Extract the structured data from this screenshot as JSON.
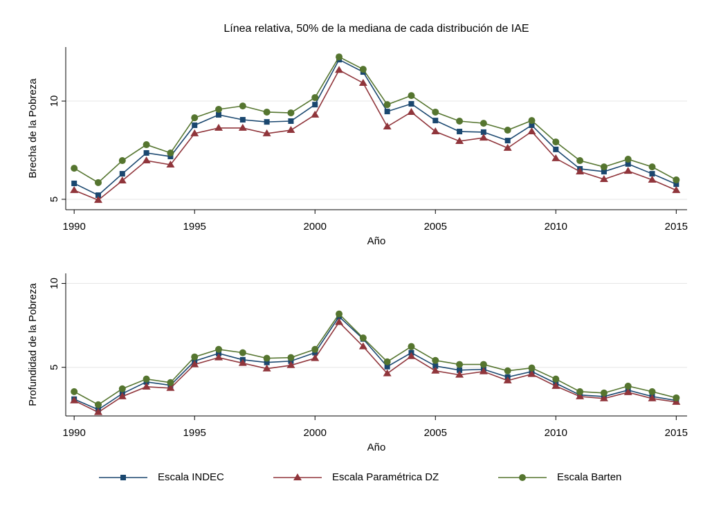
{
  "chart_data": [
    {
      "type": "line",
      "title": "Línea relativa, 50% de la mediana de cada distribución de IAE",
      "y_label": "Brecha de la Pobreza",
      "x_label": "Año",
      "x": [
        1990,
        1991,
        1992,
        1993,
        1994,
        1995,
        1996,
        1997,
        1998,
        1999,
        2000,
        2001,
        2002,
        2003,
        2004,
        2005,
        2006,
        2007,
        2008,
        2009,
        2010,
        2011,
        2012,
        2013,
        2014,
        2015
      ],
      "xlim": [
        1989.65,
        2015.45
      ],
      "xticks": [
        1990,
        1995,
        2000,
        2005,
        2010,
        2015
      ],
      "ylim": [
        4.47,
        12.75
      ],
      "yticks": [
        5,
        10
      ],
      "grid": true,
      "series": [
        {
          "name": "Escala INDEC",
          "color": "#1a476f",
          "marker": "square",
          "values": [
            5.81,
            5.21,
            6.3,
            7.36,
            7.18,
            8.77,
            9.3,
            9.05,
            8.94,
            8.98,
            9.82,
            12.11,
            11.48,
            9.47,
            9.86,
            9.01,
            8.45,
            8.42,
            7.99,
            8.77,
            7.54,
            6.55,
            6.41,
            6.8,
            6.3,
            5.77
          ]
        },
        {
          "name": "Escala Paramétrica DZ",
          "color": "#90353b",
          "marker": "triangle",
          "values": [
            5.46,
            4.96,
            5.95,
            6.97,
            6.76,
            8.35,
            8.63,
            8.63,
            8.35,
            8.52,
            9.3,
            11.58,
            10.92,
            8.7,
            9.44,
            8.45,
            7.96,
            8.13,
            7.61,
            8.45,
            7.08,
            6.41,
            6.02,
            6.44,
            5.99,
            5.46
          ]
        },
        {
          "name": "Escala Barten",
          "color": "#55752f",
          "marker": "circle",
          "values": [
            6.58,
            5.85,
            6.97,
            7.78,
            7.36,
            9.15,
            9.58,
            9.75,
            9.44,
            9.4,
            10.18,
            12.25,
            11.62,
            9.82,
            10.28,
            9.44,
            8.98,
            8.87,
            8.52,
            9.01,
            7.92,
            6.97,
            6.65,
            7.04,
            6.65,
            5.99
          ]
        }
      ]
    },
    {
      "type": "line",
      "y_label": "Profundidad de la Pobreza",
      "x_label": "Año",
      "x": [
        1990,
        1991,
        1992,
        1993,
        1994,
        1995,
        1996,
        1997,
        1998,
        1999,
        2000,
        2001,
        2002,
        2003,
        2004,
        2005,
        2006,
        2007,
        2008,
        2009,
        2010,
        2011,
        2012,
        2013,
        2014,
        2015
      ],
      "xlim": [
        1989.65,
        2015.45
      ],
      "xticks": [
        1990,
        1995,
        2000,
        2005,
        2010,
        2015
      ],
      "ylim": [
        2.1,
        10.6
      ],
      "yticks": [
        5,
        10
      ],
      "grid": true,
      "series": [
        {
          "color": "#1a476f",
          "marker": "square",
          "values": [
            3.1,
            2.48,
            3.43,
            4.13,
            3.93,
            5.37,
            5.83,
            5.45,
            5.29,
            5.37,
            5.87,
            8.02,
            6.69,
            5.04,
            5.87,
            5.08,
            4.83,
            4.88,
            4.42,
            4.75,
            4.05,
            3.35,
            3.26,
            3.64,
            3.26,
            3.02
          ]
        },
        {
          "color": "#90353b",
          "marker": "triangle",
          "values": [
            3.02,
            2.32,
            3.26,
            3.84,
            3.76,
            5.17,
            5.58,
            5.25,
            4.92,
            5.12,
            5.54,
            7.69,
            6.24,
            4.63,
            5.66,
            4.79,
            4.55,
            4.75,
            4.21,
            4.59,
            3.88,
            3.26,
            3.14,
            3.51,
            3.14,
            2.93
          ]
        },
        {
          "color": "#55752f",
          "marker": "circle",
          "values": [
            3.55,
            2.77,
            3.72,
            4.3,
            4.09,
            5.62,
            6.07,
            5.87,
            5.54,
            5.58,
            6.07,
            8.18,
            6.75,
            5.33,
            6.24,
            5.41,
            5.17,
            5.17,
            4.79,
            4.96,
            4.3,
            3.55,
            3.47,
            3.88,
            3.55,
            3.18
          ]
        }
      ]
    }
  ]
}
